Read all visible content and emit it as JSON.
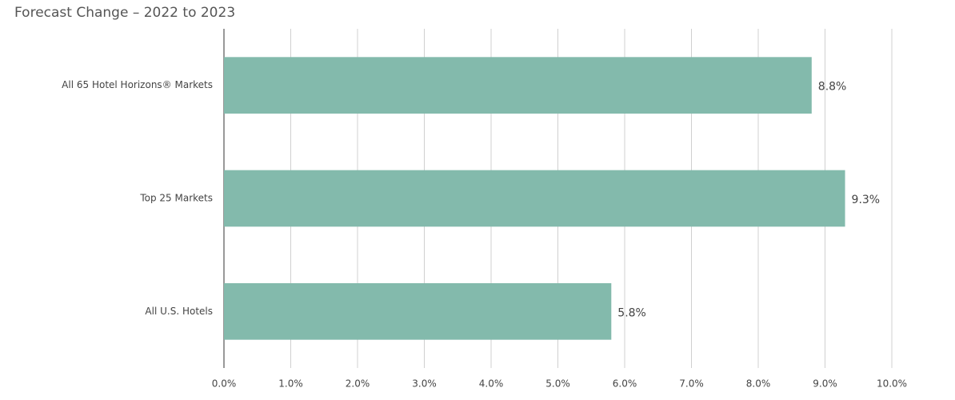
{
  "chart_data": {
    "type": "hbar",
    "title": "Forecast Change  – 2022 to 2023",
    "categories": [
      "All 65 Hotel Horizons® Markets",
      "Top 25 Markets",
      "All U.S. Hotels"
    ],
    "values": [
      8.8,
      9.3,
      5.8
    ],
    "value_labels": [
      "8.8%",
      "9.3%",
      "5.8%"
    ],
    "color": "#83baac",
    "xlim": [
      0,
      10
    ],
    "xticks": [
      {
        "value": 0,
        "label": "0.0%"
      },
      {
        "value": 1,
        "label": "1.0%"
      },
      {
        "value": 2,
        "label": "2.0%"
      },
      {
        "value": 3,
        "label": "3.0%"
      },
      {
        "value": 4,
        "label": "4.0%"
      },
      {
        "value": 5,
        "label": "5.0%"
      },
      {
        "value": 6,
        "label": "6.0%"
      },
      {
        "value": 7,
        "label": "7.0%"
      },
      {
        "value": 8,
        "label": "8.0%"
      },
      {
        "value": 9,
        "label": "9.0%"
      },
      {
        "value": 10,
        "label": "10.0%"
      }
    ],
    "grid": true
  }
}
